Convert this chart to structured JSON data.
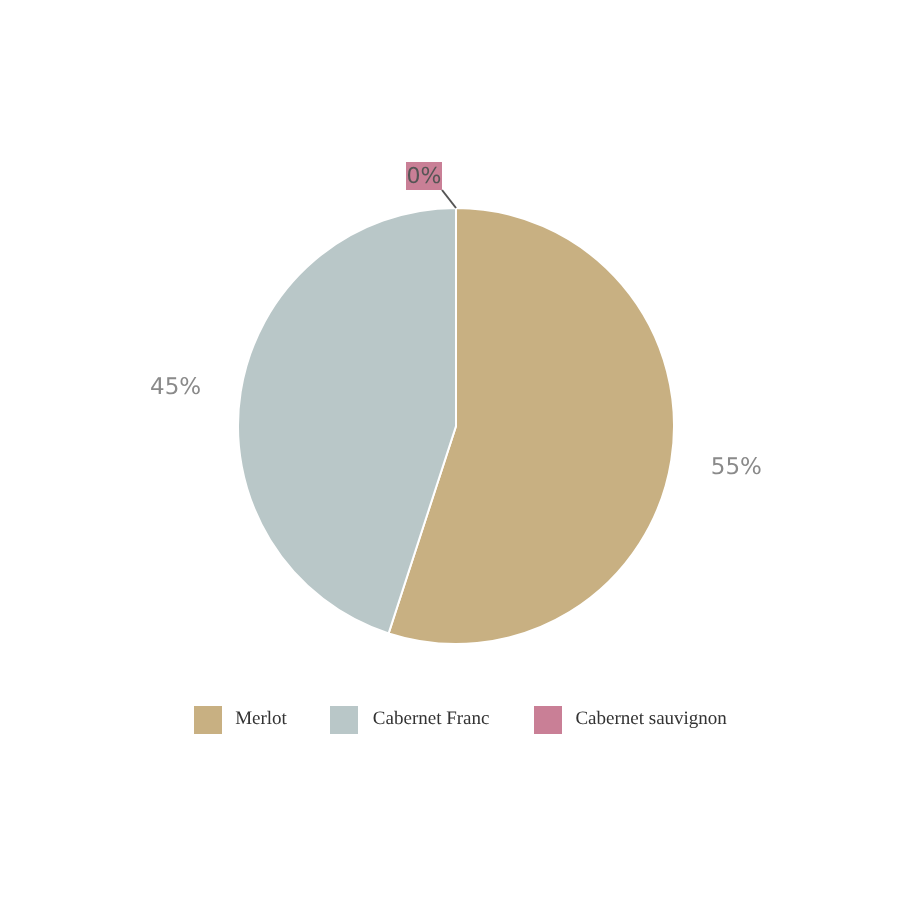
{
  "chart_data": {
    "type": "pie",
    "categories": [
      "Merlot",
      "Cabernet Franc",
      "Cabernet sauvignon"
    ],
    "values": [
      55,
      45,
      0
    ],
    "colors": [
      "#c8b082",
      "#b9c7c8",
      "#c97f96"
    ],
    "value_labels": [
      "55%",
      "45%",
      "0%"
    ],
    "legend": "bottom"
  }
}
